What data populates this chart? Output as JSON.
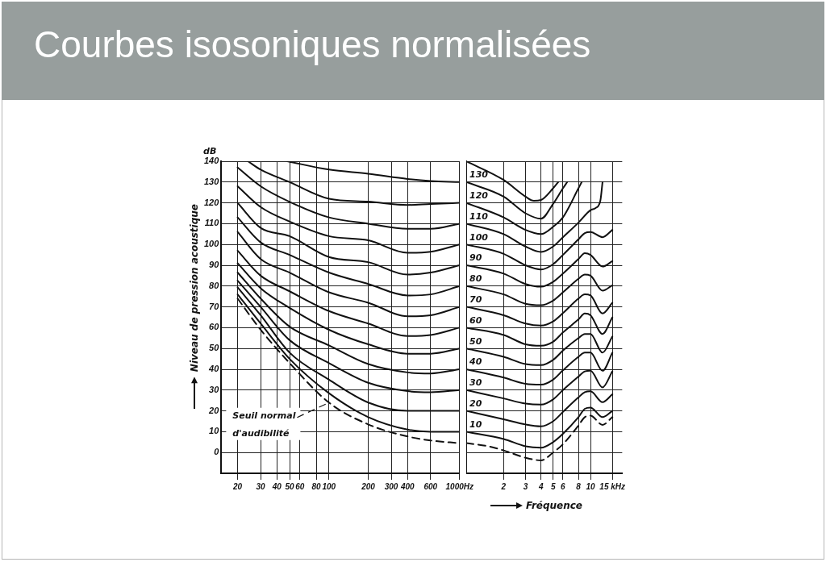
{
  "chart_data": [
    {
      "type": "line",
      "title": "Courbes isosoniques normalisées",
      "ylabel": "Niveau de pression acoustique",
      "annotations": [
        "dB"
      ],
      "log": "x",
      "grid": true,
      "marker": "none",
      "xlim": [
        15,
        1000
      ],
      "ylim": [
        -10,
        140
      ],
      "xticks": [
        20,
        30,
        40,
        50,
        60,
        80,
        100,
        200,
        300,
        400,
        600,
        {
          "value": 1000,
          "label": "1000Hz"
        }
      ],
      "yticks": [
        0,
        10,
        20,
        30,
        40,
        50,
        60,
        70,
        80,
        90,
        100,
        110,
        120,
        130,
        140
      ],
      "series": [
        {
          "name": "Seuil normal d'audibilité",
          "color": "#111111",
          "line_style": "dashed",
          "x": [
            20,
            30,
            50,
            100,
            200,
            400,
            600,
            1000
          ],
          "values": [
            74,
            59,
            43,
            24,
            13.5,
            7.7,
            5.8,
            4.5
          ]
        },
        {
          "color": "#111111",
          "x": [
            20,
            30,
            50,
            100,
            200,
            400,
            600,
            1000
          ],
          "values": [
            76,
            62,
            45,
            28.5,
            17,
            11,
            10,
            10
          ]
        },
        {
          "color": "#111111",
          "x": [
            20,
            30,
            50,
            100,
            200,
            400,
            600,
            1000
          ],
          "values": [
            79.4,
            66,
            48,
            35,
            24,
            20,
            20,
            20
          ]
        },
        {
          "color": "#111111",
          "x": [
            20,
            30,
            50,
            100,
            200,
            400,
            600,
            1000
          ],
          "values": [
            82.6,
            70,
            54,
            43,
            33.5,
            29.5,
            29,
            30
          ]
        },
        {
          "color": "#111111",
          "x": [
            20,
            30,
            50,
            100,
            200,
            400,
            600,
            1000
          ],
          "values": [
            86.5,
            74,
            60.5,
            51.5,
            42.5,
            38.5,
            38,
            40
          ]
        },
        {
          "color": "#111111",
          "x": [
            20,
            30,
            50,
            100,
            200,
            400,
            600,
            1000
          ],
          "values": [
            91,
            79,
            69.5,
            59,
            52,
            47.5,
            47.5,
            50
          ]
        },
        {
          "color": "#111111",
          "x": [
            20,
            30,
            50,
            100,
            200,
            400,
            600,
            1000
          ],
          "values": [
            97,
            85,
            77.5,
            68,
            62,
            56,
            56.5,
            60
          ]
        },
        {
          "color": "#111111",
          "x": [
            20,
            30,
            50,
            100,
            200,
            400,
            600,
            1000
          ],
          "values": [
            106,
            93,
            86.5,
            77,
            72,
            65.5,
            66,
            70
          ]
        },
        {
          "color": "#111111",
          "x": [
            20,
            30,
            50,
            100,
            200,
            400,
            600,
            1000
          ],
          "values": [
            113,
            101,
            95,
            86.5,
            81,
            75.5,
            76,
            80
          ]
        },
        {
          "color": "#111111",
          "x": [
            20,
            30,
            50,
            100,
            200,
            400,
            600,
            1000
          ],
          "values": [
            120,
            108,
            104,
            94,
            91.5,
            85.5,
            86.5,
            90
          ]
        },
        {
          "color": "#111111",
          "x": [
            20,
            30,
            50,
            100,
            200,
            400,
            600,
            1000
          ],
          "values": [
            128,
            118,
            111,
            104,
            102,
            96,
            96.5,
            100
          ]
        },
        {
          "color": "#111111",
          "x": [
            20,
            30,
            50,
            100,
            200,
            400,
            600,
            1000
          ],
          "values": [
            137,
            128,
            120.5,
            113,
            110,
            107.5,
            107.5,
            110
          ]
        },
        {
          "color": "#111111",
          "x": [
            24,
            30,
            50,
            100,
            200,
            400,
            600,
            1000
          ],
          "values": [
            140,
            136,
            130,
            122,
            120.6,
            119,
            119.5,
            120
          ]
        },
        {
          "color": "#111111",
          "x": [
            48,
            100,
            200,
            400,
            600,
            1000
          ],
          "values": [
            140,
            136,
            134,
            131.5,
            130.5,
            130
          ]
        }
      ]
    },
    {
      "type": "line",
      "xlabel": "Fréquence",
      "log": "x",
      "grid": true,
      "marker": "none",
      "tick_labels": "x",
      "xlim": [
        1,
        18
      ],
      "ylim": [
        -10,
        140
      ],
      "xticks": [
        2,
        3,
        4,
        5,
        6,
        8,
        10,
        {
          "value": 15,
          "label": "15 kHz"
        }
      ],
      "yticks": [
        0,
        10,
        20,
        30,
        40,
        50,
        60,
        70,
        80,
        90,
        100,
        110,
        120,
        130,
        140
      ],
      "series": [
        {
          "color": "#111111",
          "line_style": "dashed",
          "x": [
            1,
            1.5,
            2,
            3,
            4,
            5,
            6,
            8,
            9,
            10,
            12.5,
            15
          ],
          "values": [
            4.5,
            3,
            1,
            -2.5,
            -3.8,
            0,
            4,
            13,
            17,
            17.7,
            13.3,
            17
          ]
        },
        {
          "name": "10",
          "color": "#111111",
          "x": [
            1,
            2,
            3,
            4,
            5,
            6,
            8,
            9,
            10,
            12.5,
            15
          ],
          "values": [
            10,
            6.5,
            3,
            2.3,
            5,
            9,
            17,
            21,
            21.6,
            17,
            20
          ]
        },
        {
          "name": "20",
          "color": "#111111",
          "x": [
            1,
            2,
            3,
            4,
            5,
            6,
            8,
            9,
            10,
            12.5,
            15
          ],
          "values": [
            20,
            16,
            13.5,
            12.6,
            15,
            19.5,
            26.5,
            29,
            29.4,
            24.2,
            28
          ]
        },
        {
          "name": "30",
          "color": "#111111",
          "x": [
            1,
            2,
            3,
            4,
            5,
            6,
            8,
            9,
            10,
            12.5,
            15
          ],
          "values": [
            30,
            26,
            23.5,
            23,
            25.5,
            30,
            36.5,
            39,
            39.3,
            31.3,
            39
          ]
        },
        {
          "name": "40",
          "color": "#111111",
          "x": [
            1,
            2,
            3,
            4,
            5,
            6,
            8,
            9,
            10,
            12.5,
            15
          ],
          "values": [
            40,
            36,
            33,
            32.6,
            35,
            39.5,
            46,
            48,
            48,
            39.3,
            48
          ]
        },
        {
          "name": "50",
          "color": "#111111",
          "x": [
            1,
            2,
            3,
            4,
            5,
            6,
            8,
            9,
            10,
            12.5,
            15
          ],
          "values": [
            50,
            46,
            42.5,
            42,
            44.5,
            49,
            55,
            57,
            57,
            48,
            55.8
          ]
        },
        {
          "name": "60",
          "color": "#111111",
          "x": [
            1,
            2,
            3,
            4,
            5,
            6,
            8,
            9,
            10,
            12.5,
            15
          ],
          "values": [
            60,
            56.5,
            52,
            51.3,
            53.2,
            57.7,
            64,
            66.8,
            66,
            57,
            65
          ]
        },
        {
          "name": "70",
          "color": "#111111",
          "x": [
            1,
            2,
            3,
            4,
            5,
            6,
            8,
            9,
            10,
            12.5,
            15
          ],
          "values": [
            70,
            66,
            62,
            61,
            63,
            67,
            74,
            76,
            75.5,
            66.8,
            72
          ]
        },
        {
          "name": "80",
          "color": "#111111",
          "x": [
            1,
            2,
            3,
            4,
            5,
            6,
            8,
            9,
            10,
            12.5,
            15
          ],
          "values": [
            80,
            76,
            71.5,
            70.8,
            73,
            77,
            83.5,
            85.5,
            85,
            77.8,
            80.4
          ]
        },
        {
          "name": "90",
          "color": "#111111",
          "x": [
            1,
            2,
            3,
            4,
            5,
            6,
            8,
            9,
            10,
            12.5,
            15
          ],
          "values": [
            90,
            86,
            81,
            79.7,
            82,
            86,
            93,
            95.8,
            95,
            89.4,
            92
          ]
        },
        {
          "name": "100",
          "color": "#111111",
          "x": [
            1,
            2,
            3,
            4,
            5,
            6,
            8,
            9,
            10,
            12.5,
            15
          ],
          "values": [
            100,
            95.5,
            90,
            88,
            90.5,
            95,
            102.5,
            105.5,
            106,
            103.5,
            107
          ]
        },
        {
          "name": "110",
          "color": "#111111",
          "x": [
            1,
            2,
            3,
            4,
            5,
            6,
            8,
            10,
            11,
            12,
            12.5
          ],
          "values": [
            110,
            105,
            99,
            96.4,
            99,
            103.5,
            110.5,
            116.5,
            117.5,
            121,
            130
          ]
        },
        {
          "name": "120",
          "color": "#111111",
          "x": [
            1,
            2,
            3,
            4,
            5,
            6,
            8,
            8.5
          ],
          "values": [
            120,
            113,
            107,
            105,
            108.5,
            113,
            127,
            130
          ]
        },
        {
          "name": "130",
          "color": "#111111",
          "x": [
            1,
            2,
            3,
            4,
            5,
            6,
            6.5
          ],
          "values": [
            130,
            123,
            115,
            112.4,
            119.5,
            127,
            130
          ]
        },
        {
          "color": "#111111",
          "x": [
            1,
            2,
            3,
            3.5,
            4,
            5,
            5.5
          ],
          "values": [
            140,
            131,
            123,
            121,
            121.4,
            127,
            130
          ]
        }
      ]
    }
  ]
}
